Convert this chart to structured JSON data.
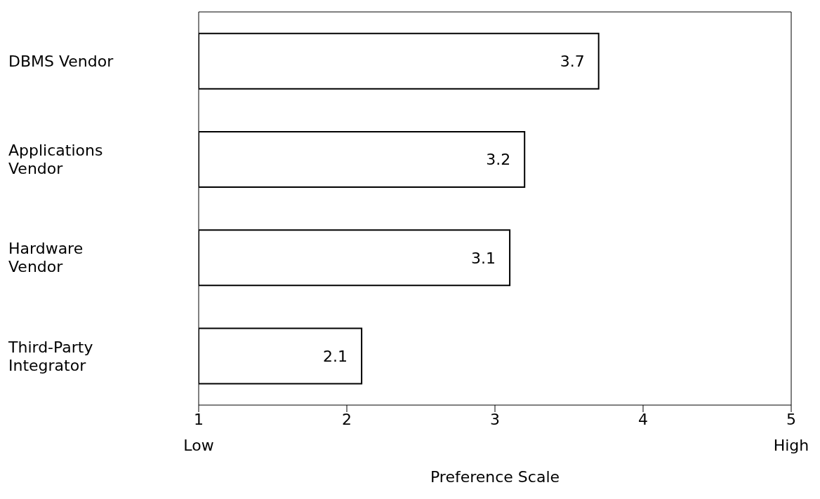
{
  "chart_data": {
    "type": "bar",
    "orientation": "horizontal",
    "xlabel": "Preference Scale",
    "categories": [
      "DBMS Vendor",
      "Applications Vendor",
      "Hardware Vendor",
      "Third-Party Integrator"
    ],
    "values": [
      3.7,
      3.2,
      3.1,
      2.1
    ],
    "color": "#ffffff",
    "xlim": [
      1,
      5
    ],
    "xticks": [
      1,
      2,
      3,
      4,
      5
    ],
    "data_labels": true,
    "annotations": [
      "Low",
      "High"
    ]
  }
}
